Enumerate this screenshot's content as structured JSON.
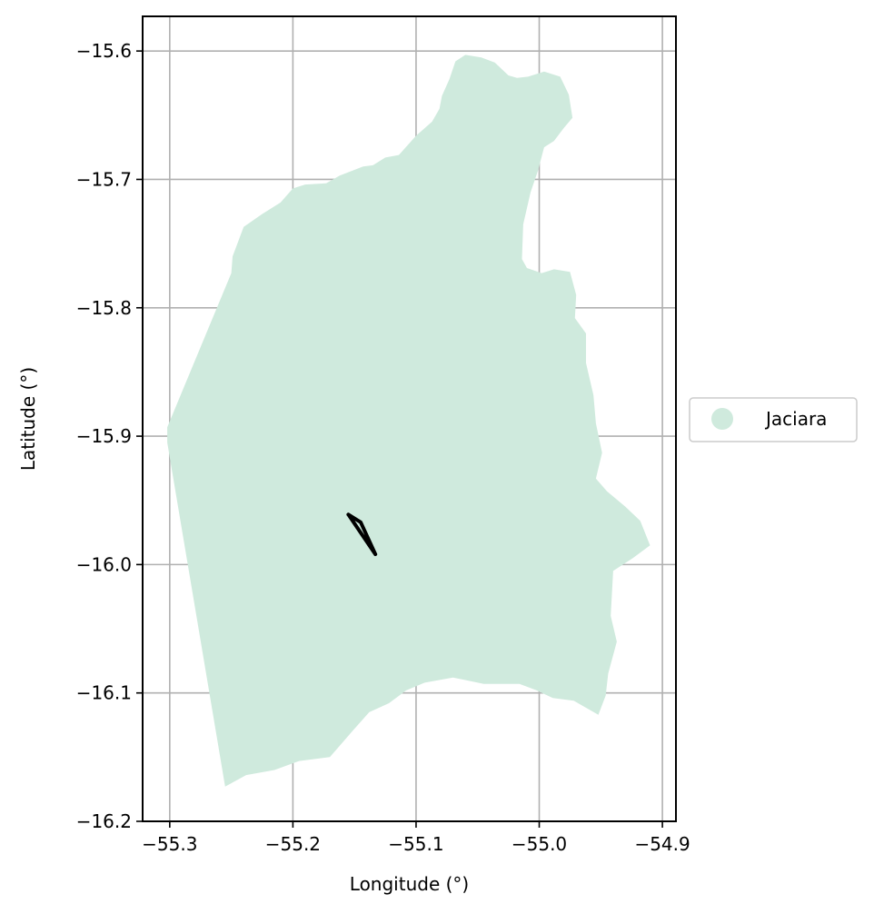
{
  "chart_data": {
    "type": "map",
    "xlabel": "Longitude (°)",
    "ylabel": "Latitude (°)",
    "xlim": [
      -55.322,
      -54.889
    ],
    "ylim": [
      -16.2,
      -15.573
    ],
    "xticks": [
      -55.3,
      -55.2,
      -55.1,
      -55.0,
      -54.9
    ],
    "xtick_labels": [
      "−55.3",
      "−55.2",
      "−55.1",
      "−55.0",
      "−54.9"
    ],
    "yticks": [
      -15.6,
      -15.7,
      -15.8,
      -15.9,
      -16.0,
      -16.1,
      -16.2
    ],
    "ytick_labels": [
      "−15.6",
      "−15.7",
      "−15.8",
      "−15.9",
      "−16.0",
      "−16.1",
      "−16.2"
    ],
    "grid": true,
    "legend": {
      "placement": "center-right outside",
      "entries": [
        {
          "label": "Jaciara",
          "color": "#cfeadd"
        }
      ]
    },
    "region": {
      "name": "Jaciara",
      "color": "#cfeadd",
      "outline": [
        [
          -55.06,
          -15.603
        ],
        [
          -55.047,
          -15.605
        ],
        [
          -55.036,
          -15.609
        ],
        [
          -55.025,
          -15.619
        ],
        [
          -55.018,
          -15.621
        ],
        [
          -55.009,
          -15.62
        ],
        [
          -54.996,
          -15.616
        ],
        [
          -54.983,
          -15.62
        ],
        [
          -54.976,
          -15.634
        ],
        [
          -54.973,
          -15.652
        ],
        [
          -54.98,
          -15.66
        ],
        [
          -54.988,
          -15.67
        ],
        [
          -54.996,
          -15.675
        ],
        [
          -55.001,
          -15.693
        ],
        [
          -55.007,
          -15.71
        ],
        [
          -55.013,
          -15.735
        ],
        [
          -55.014,
          -15.762
        ],
        [
          -55.01,
          -15.769
        ],
        [
          -54.998,
          -15.773
        ],
        [
          -54.988,
          -15.77
        ],
        [
          -54.975,
          -15.772
        ],
        [
          -54.97,
          -15.79
        ],
        [
          -54.971,
          -15.808
        ],
        [
          -54.962,
          -15.82
        ],
        [
          -54.962,
          -15.843
        ],
        [
          -54.956,
          -15.868
        ],
        [
          -54.954,
          -15.89
        ],
        [
          -54.949,
          -15.913
        ],
        [
          -54.954,
          -15.933
        ],
        [
          -54.945,
          -15.943
        ],
        [
          -54.93,
          -15.955
        ],
        [
          -54.918,
          -15.966
        ],
        [
          -54.91,
          -15.985
        ],
        [
          -54.924,
          -15.995
        ],
        [
          -54.94,
          -16.005
        ],
        [
          -54.942,
          -16.04
        ],
        [
          -54.937,
          -16.06
        ],
        [
          -54.944,
          -16.085
        ],
        [
          -54.946,
          -16.102
        ],
        [
          -54.952,
          -16.117
        ],
        [
          -54.972,
          -16.106
        ],
        [
          -54.989,
          -16.104
        ],
        [
          -55.002,
          -16.098
        ],
        [
          -55.016,
          -16.093
        ],
        [
          -55.045,
          -16.093
        ],
        [
          -55.07,
          -16.088
        ],
        [
          -55.093,
          -16.092
        ],
        [
          -55.108,
          -16.098
        ],
        [
          -55.122,
          -16.108
        ],
        [
          -55.138,
          -16.115
        ],
        [
          -55.152,
          -16.13
        ],
        [
          -55.17,
          -16.15
        ],
        [
          -55.195,
          -16.153
        ],
        [
          -55.215,
          -16.16
        ],
        [
          -55.238,
          -16.164
        ],
        [
          -55.255,
          -16.173
        ],
        [
          -55.302,
          -15.905
        ],
        [
          -55.302,
          -15.893
        ],
        [
          -55.25,
          -15.773
        ],
        [
          -55.249,
          -15.76
        ],
        [
          -55.24,
          -15.737
        ],
        [
          -55.225,
          -15.727
        ],
        [
          -55.21,
          -15.718
        ],
        [
          -55.2,
          -15.707
        ],
        [
          -55.19,
          -15.704
        ],
        [
          -55.173,
          -15.703
        ],
        [
          -55.162,
          -15.697
        ],
        [
          -55.143,
          -15.69
        ],
        [
          -55.135,
          -15.689
        ],
        [
          -55.125,
          -15.683
        ],
        [
          -55.114,
          -15.681
        ],
        [
          -55.1,
          -15.666
        ],
        [
          -55.087,
          -15.655
        ],
        [
          -55.081,
          -15.645
        ],
        [
          -55.079,
          -15.635
        ],
        [
          -55.073,
          -15.622
        ],
        [
          -55.068,
          -15.608
        ]
      ]
    },
    "line_feature": [
      [
        -55.155,
        -15.961
      ],
      [
        -55.145,
        -15.967
      ],
      [
        -55.133,
        -15.992
      ],
      [
        -55.155,
        -15.961
      ]
    ]
  }
}
